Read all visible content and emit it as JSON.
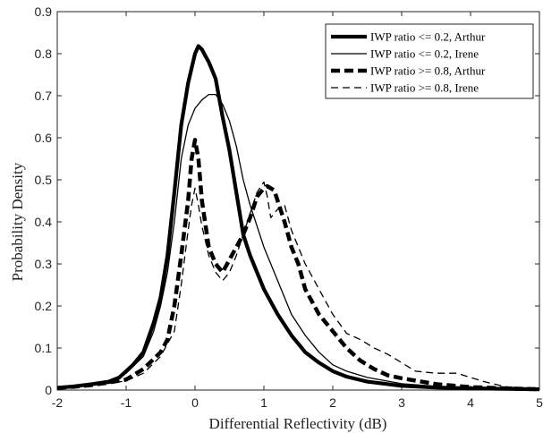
{
  "chart_data": {
    "type": "line",
    "xlabel": "Differential Reflectivity (dB)",
    "ylabel": "Probability Density",
    "xlim": [
      -2,
      5
    ],
    "ylim": [
      0,
      0.9
    ],
    "xticks": [
      "-2",
      "-1",
      "0",
      "1",
      "2",
      "3",
      "4",
      "5"
    ],
    "yticks": [
      "0",
      "0.1",
      "0.2",
      "0.3",
      "0.4",
      "0.5",
      "0.6",
      "0.7",
      "0.8",
      "0.9"
    ],
    "grid": false,
    "legend_position": "top-right",
    "series": [
      {
        "name": "IWP ratio <= 0.2, Arthur",
        "style": "thick-solid",
        "color": "#000000",
        "points": [
          [
            -2,
            0.005
          ],
          [
            -1.75,
            0.009
          ],
          [
            -1.5,
            0.014
          ],
          [
            -1.25,
            0.02
          ],
          [
            -1.1,
            0.03
          ],
          [
            -1.0,
            0.045
          ],
          [
            -0.9,
            0.06
          ],
          [
            -0.75,
            0.09
          ],
          [
            -0.6,
            0.16
          ],
          [
            -0.5,
            0.22
          ],
          [
            -0.4,
            0.32
          ],
          [
            -0.3,
            0.47
          ],
          [
            -0.2,
            0.63
          ],
          [
            -0.1,
            0.73
          ],
          [
            0.0,
            0.8
          ],
          [
            0.05,
            0.818
          ],
          [
            0.1,
            0.81
          ],
          [
            0.15,
            0.795
          ],
          [
            0.2,
            0.78
          ],
          [
            0.25,
            0.76
          ],
          [
            0.3,
            0.74
          ],
          [
            0.4,
            0.65
          ],
          [
            0.5,
            0.57
          ],
          [
            0.6,
            0.47
          ],
          [
            0.7,
            0.37
          ],
          [
            0.8,
            0.32
          ],
          [
            1.0,
            0.24
          ],
          [
            1.2,
            0.18
          ],
          [
            1.4,
            0.13
          ],
          [
            1.6,
            0.09
          ],
          [
            1.8,
            0.065
          ],
          [
            2.0,
            0.045
          ],
          [
            2.2,
            0.032
          ],
          [
            2.5,
            0.02
          ],
          [
            3.0,
            0.01
          ],
          [
            3.5,
            0.006
          ],
          [
            4.0,
            0.004
          ],
          [
            4.5,
            0.003
          ],
          [
            5.0,
            0.002
          ]
        ]
      },
      {
        "name": "IWP ratio <= 0.2, Irene",
        "style": "thin-solid",
        "color": "#000000",
        "points": [
          [
            -2,
            0.004
          ],
          [
            -1.75,
            0.008
          ],
          [
            -1.5,
            0.012
          ],
          [
            -1.25,
            0.018
          ],
          [
            -1.0,
            0.04
          ],
          [
            -0.75,
            0.08
          ],
          [
            -0.6,
            0.14
          ],
          [
            -0.5,
            0.2
          ],
          [
            -0.4,
            0.28
          ],
          [
            -0.3,
            0.4
          ],
          [
            -0.2,
            0.55
          ],
          [
            -0.1,
            0.63
          ],
          [
            0.0,
            0.67
          ],
          [
            0.1,
            0.69
          ],
          [
            0.2,
            0.703
          ],
          [
            0.3,
            0.703
          ],
          [
            0.4,
            0.68
          ],
          [
            0.5,
            0.64
          ],
          [
            0.6,
            0.58
          ],
          [
            0.7,
            0.5
          ],
          [
            0.8,
            0.44
          ],
          [
            0.9,
            0.39
          ],
          [
            1.0,
            0.34
          ],
          [
            1.2,
            0.26
          ],
          [
            1.4,
            0.18
          ],
          [
            1.6,
            0.13
          ],
          [
            1.8,
            0.09
          ],
          [
            2.0,
            0.06
          ],
          [
            2.2,
            0.045
          ],
          [
            2.5,
            0.03
          ],
          [
            3.0,
            0.015
          ],
          [
            3.5,
            0.009
          ],
          [
            4.0,
            0.006
          ],
          [
            4.5,
            0.004
          ],
          [
            5.0,
            0.003
          ]
        ]
      },
      {
        "name": "IWP ratio >= 0.8, Arthur",
        "style": "thick-dashed",
        "color": "#000000",
        "points": [
          [
            -2,
            0.005
          ],
          [
            -1.75,
            0.008
          ],
          [
            -1.5,
            0.012
          ],
          [
            -1.25,
            0.018
          ],
          [
            -1.0,
            0.025
          ],
          [
            -0.75,
            0.05
          ],
          [
            -0.5,
            0.09
          ],
          [
            -0.4,
            0.12
          ],
          [
            -0.3,
            0.2
          ],
          [
            -0.2,
            0.32
          ],
          [
            -0.1,
            0.45
          ],
          [
            -0.05,
            0.55
          ],
          [
            0.0,
            0.595
          ],
          [
            0.05,
            0.55
          ],
          [
            0.1,
            0.45
          ],
          [
            0.2,
            0.34
          ],
          [
            0.3,
            0.3
          ],
          [
            0.4,
            0.28
          ],
          [
            0.5,
            0.31
          ],
          [
            0.6,
            0.34
          ],
          [
            0.7,
            0.37
          ],
          [
            0.8,
            0.41
          ],
          [
            0.9,
            0.46
          ],
          [
            1.0,
            0.48
          ],
          [
            1.05,
            0.485
          ],
          [
            1.1,
            0.48
          ],
          [
            1.15,
            0.475
          ],
          [
            1.2,
            0.45
          ],
          [
            1.3,
            0.4
          ],
          [
            1.4,
            0.34
          ],
          [
            1.5,
            0.3
          ],
          [
            1.6,
            0.24
          ],
          [
            1.8,
            0.18
          ],
          [
            2.0,
            0.14
          ],
          [
            2.2,
            0.1
          ],
          [
            2.4,
            0.07
          ],
          [
            2.6,
            0.05
          ],
          [
            2.8,
            0.035
          ],
          [
            3.0,
            0.028
          ],
          [
            3.5,
            0.014
          ],
          [
            4.0,
            0.007
          ],
          [
            4.5,
            0.004
          ],
          [
            5.0,
            0.002
          ]
        ]
      },
      {
        "name": "IWP ratio >= 0.8, Irene",
        "style": "thin-dashed",
        "color": "#000000",
        "points": [
          [
            -2,
            0.005
          ],
          [
            -1.75,
            0.008
          ],
          [
            -1.5,
            0.011
          ],
          [
            -1.25,
            0.016
          ],
          [
            -1.0,
            0.022
          ],
          [
            -0.75,
            0.04
          ],
          [
            -0.5,
            0.08
          ],
          [
            -0.3,
            0.14
          ],
          [
            -0.2,
            0.25
          ],
          [
            -0.1,
            0.38
          ],
          [
            -0.05,
            0.44
          ],
          [
            0.0,
            0.48
          ],
          [
            0.05,
            0.44
          ],
          [
            0.1,
            0.39
          ],
          [
            0.2,
            0.32
          ],
          [
            0.3,
            0.28
          ],
          [
            0.4,
            0.26
          ],
          [
            0.5,
            0.28
          ],
          [
            0.6,
            0.32
          ],
          [
            0.7,
            0.37
          ],
          [
            0.8,
            0.42
          ],
          [
            0.9,
            0.47
          ],
          [
            1.0,
            0.495
          ],
          [
            1.05,
            0.46
          ],
          [
            1.1,
            0.41
          ],
          [
            1.2,
            0.43
          ],
          [
            1.3,
            0.44
          ],
          [
            1.4,
            0.38
          ],
          [
            1.5,
            0.34
          ],
          [
            1.6,
            0.3
          ],
          [
            1.8,
            0.24
          ],
          [
            2.0,
            0.18
          ],
          [
            2.2,
            0.135
          ],
          [
            2.4,
            0.12
          ],
          [
            2.6,
            0.1
          ],
          [
            2.8,
            0.085
          ],
          [
            3.0,
            0.065
          ],
          [
            3.2,
            0.045
          ],
          [
            3.5,
            0.04
          ],
          [
            3.8,
            0.04
          ],
          [
            4.0,
            0.03
          ],
          [
            4.2,
            0.02
          ],
          [
            4.5,
            0.008
          ],
          [
            5.0,
            0.003
          ]
        ]
      }
    ]
  }
}
